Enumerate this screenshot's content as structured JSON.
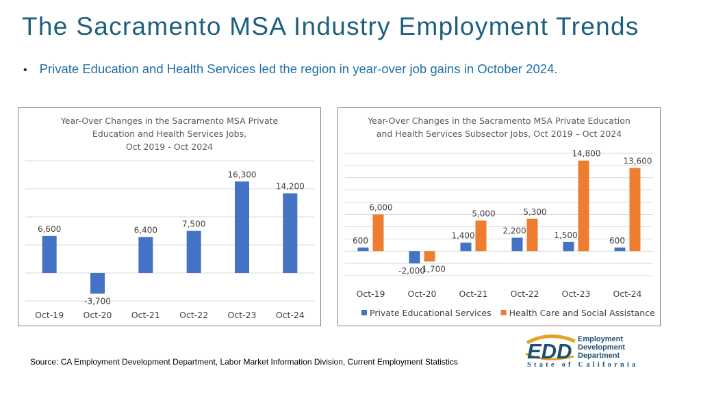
{
  "title": "The Sacramento MSA Industry Employment Trends",
  "bullet": "Private Education and Health Services led the region in year-over job gains in October 2024.",
  "source": "Source: CA Employment Development Department, Labor Market Information Division, Current Employment Statistics",
  "logo": {
    "letters": "EDD",
    "line1": "Employment",
    "line2": "Development",
    "line3": "Department",
    "state": "State of California"
  },
  "colors": {
    "blue": "#4472c4",
    "orange": "#ed7d31",
    "title": "#1d5f7e",
    "bullet": "#1e6fa8",
    "logo": "#1d4f73",
    "logo_gold": "#e0a526"
  },
  "chart_data": [
    {
      "type": "bar",
      "title_lines": [
        "Year-Over Changes in the Sacramento MSA Private",
        "Education and Health Services Jobs,",
        "Oct 2019 - Oct 2024"
      ],
      "categories": [
        "Oct-19",
        "Oct-20",
        "Oct-21",
        "Oct-22",
        "Oct-23",
        "Oct-24"
      ],
      "series": [
        {
          "values": [
            6600,
            -3700,
            6400,
            7500,
            16300,
            14200
          ],
          "labels": [
            "6,600",
            "-3,700",
            "6,400",
            "7,500",
            "16,300",
            "14,200"
          ]
        }
      ],
      "ylim": [
        -5000,
        20000
      ],
      "grid": true,
      "legend": "none"
    },
    {
      "type": "bar",
      "title_lines": [
        "Year-Over Changes in the Sacramento MSA Private Education",
        "and Health Services Subsector Jobs, Oct 2019 – Oct 2024"
      ],
      "categories": [
        "Oct-19",
        "Oct-20",
        "Oct-21",
        "Oct-22",
        "Oct-23",
        "Oct-24"
      ],
      "series": [
        {
          "name": "Private Educational Services",
          "values": [
            600,
            -2000,
            1400,
            2200,
            1500,
            600
          ],
          "labels": [
            "600",
            "-2,000",
            "1,400",
            "2,200",
            "1,500",
            "600"
          ]
        },
        {
          "name": "Health Care and Social Assistance",
          "values": [
            6000,
            -1700,
            5000,
            5300,
            14800,
            13600
          ],
          "labels": [
            "6,000",
            "-1,700",
            "5,000",
            "5,300",
            "14,800",
            "13,600"
          ]
        }
      ],
      "ylim": [
        -4000,
        16000
      ],
      "grid": true,
      "legend": "bottom"
    }
  ]
}
